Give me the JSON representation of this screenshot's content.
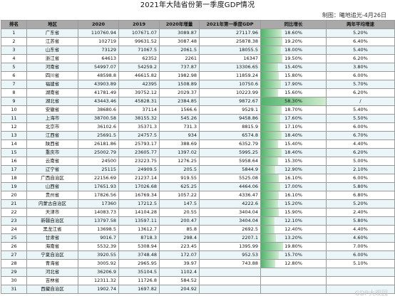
{
  "title": "2021年大陆省份第一季度GDP情况",
  "subtitle": "制图：曦地追光-4月26日",
  "watermark": "GDP大观园",
  "headers": [
    "排名",
    "地区",
    "2020",
    "2019",
    "2020年增量",
    "2021年第一季度GDP",
    "同比增长",
    "两年平均增速"
  ],
  "rows": [
    {
      "rank": "1",
      "region": "广东省",
      "y2020": "110760.94",
      "y2019": "107671.07",
      "inc": "3089.87",
      "q1": "27117.96",
      "growth": "18.60%",
      "g": 18.6,
      "avg": "5.20%"
    },
    {
      "rank": "2",
      "region": "江苏省",
      "y2020": "102719",
      "y2019": "99631.52",
      "inc": "3087.48",
      "q1": "25878.38",
      "growth": "19.20%",
      "g": 19.2,
      "avg": "6.40%"
    },
    {
      "rank": "3",
      "region": "山东省",
      "y2020": "73129",
      "y2019": "71067.5",
      "inc": "2061.5",
      "q1": "18055.5",
      "growth": "18.00%",
      "g": 18.0,
      "avg": "5.40%"
    },
    {
      "rank": "4",
      "region": "浙江省",
      "y2020": "64613",
      "y2019": "62352",
      "inc": "2261",
      "q1": "16347",
      "growth": "19.50%",
      "g": 19.5,
      "avg": "6.20%"
    },
    {
      "rank": "5",
      "region": "河南省",
      "y2020": "54997.07",
      "y2019": "54259.2",
      "inc": "737.87",
      "q1": "13306.65",
      "growth": "15.40%",
      "g": 15.4,
      "avg": "3.80%"
    },
    {
      "rank": "6",
      "region": "四川省",
      "y2020": "48598.8",
      "y2019": "46615.82",
      "inc": "1982.98",
      "q1": "11859.24",
      "growth": "15.80%",
      "g": 15.8,
      "avg": "6.00%"
    },
    {
      "rank": "7",
      "region": "福建省",
      "y2020": "43903.89",
      "y2019": "42395",
      "inc": "1508.89",
      "q1": "10750.6",
      "growth": "17.90%",
      "g": 17.9,
      "avg": "5.70%"
    },
    {
      "rank": "8",
      "region": "湖南省",
      "y2020": "41781.49",
      "y2019": "39752.12",
      "inc": "2029.37",
      "q1": "10223.99",
      "growth": "15.60%",
      "g": 15.6,
      "avg": "6.20%"
    },
    {
      "rank": "9",
      "region": "湖北省",
      "y2020": "43443.46",
      "y2019": "45828.31",
      "inc": "2384.85",
      "q1": "9872.67",
      "growth": "58.30%",
      "g": 58.3,
      "avg": "/"
    },
    {
      "rank": "10",
      "region": "安徽省",
      "y2020": "38680.6",
      "y2019": "37114",
      "inc": "1566.6",
      "q1": "9529.1",
      "growth": "18.70%",
      "g": 18.7,
      "avg": "5.40%"
    },
    {
      "rank": "11",
      "region": "上海市",
      "y2020": "38700.58",
      "y2019": "38155.32",
      "inc": "545.26",
      "q1": "9458.86",
      "growth": "17.60%",
      "g": 17.6,
      "avg": "5.50%"
    },
    {
      "rank": "12",
      "region": "北京市",
      "y2020": "36102.6",
      "y2019": "35371.3",
      "inc": "731.3",
      "q1": "8815.9",
      "growth": "17.10%",
      "g": 17.1,
      "avg": "6.00%"
    },
    {
      "rank": "13",
      "region": "江西省",
      "y2020": "25691.5",
      "y2019": "24757.5",
      "inc": "934",
      "q1": "6574.8",
      "growth": "18.40%",
      "g": 18.4,
      "avg": "6.70%"
    },
    {
      "rank": "14",
      "region": "陕西省",
      "y2020": "26181.86",
      "y2019": "25793.17",
      "inc": "388.69",
      "q1": "6352.79",
      "growth": "15.40%",
      "g": 15.4,
      "avg": "4.40%"
    },
    {
      "rank": "15",
      "region": "重庆市",
      "y2020": "25002.79",
      "y2019": "23605.77",
      "inc": "1397.02",
      "q1": "5995.25",
      "growth": "18.40%",
      "g": 18.4,
      "avg": "6.20%"
    },
    {
      "rank": "16",
      "region": "云南省",
      "y2020": "24500",
      "y2019": "23223.75",
      "inc": "1276.25",
      "q1": "5958.64",
      "growth": "15.30%",
      "g": 15.3,
      "avg": "5.00%"
    },
    {
      "rank": "17",
      "region": "辽宁省",
      "y2020": "25115",
      "y2019": "24909.5",
      "inc": "205.5",
      "q1": "5844.9",
      "growth": "12.90%",
      "g": 12.9,
      "avg": "2.10%"
    },
    {
      "rank": "18",
      "region": "广西自治区",
      "y2020": "22156.69",
      "y2019": "21237.14",
      "inc": "919.55",
      "q1": "5525.08",
      "growth": "16.10%",
      "g": 16.1,
      "avg": "6.00%"
    },
    {
      "rank": "19",
      "region": "山西省",
      "y2020": "17651.93",
      "y2019": "17026.68",
      "inc": "625.25",
      "q1": "4464.06",
      "growth": "17.00%",
      "g": 17.0,
      "avg": "5.80%"
    },
    {
      "rank": "20",
      "region": "贵州省",
      "y2020": "17826.56",
      "y2019": "16769.34",
      "inc": "1057.22",
      "q1": "4336.47",
      "growth": "16.10%",
      "g": 16.1,
      "avg": "6.80%"
    },
    {
      "rank": "21",
      "region": "内蒙古自治区",
      "y2020": "17360",
      "y2019": "17212.5",
      "inc": "147.5",
      "q1": "4222.6",
      "growth": "15.20%",
      "g": 15.2,
      "avg": "5.20%"
    },
    {
      "rank": "22",
      "region": "天津市",
      "y2020": "14083.73",
      "y2019": "14104.28",
      "inc": "20.55",
      "q1": "3404.04",
      "growth": "15.90%",
      "g": 15.9,
      "avg": "2.40%"
    },
    {
      "rank": "23",
      "region": "新疆自治区",
      "y2020": "13797.58",
      "y2019": "13597.11",
      "inc": "200.47",
      "q1": "3404.04",
      "growth": "12.10%",
      "g": 12.1,
      "avg": "5.80%"
    },
    {
      "rank": "24",
      "region": "黑龙江省",
      "y2020": "13698.5",
      "y2019": "13612.7",
      "inc": "85.8",
      "q1": "2692.5",
      "growth": "12.40%",
      "g": 12.4,
      "avg": "4.40%"
    },
    {
      "rank": "25",
      "region": "甘肃省",
      "y2020": "9016.7",
      "y2019": "8718.3",
      "inc": "298.4",
      "q1": "2207.1",
      "growth": "13.20%",
      "g": 13.2,
      "avg": "4.60%"
    },
    {
      "rank": "26",
      "region": "海南省",
      "y2020": "5532.39",
      "y2019": "5308.94",
      "inc": "223.45",
      "q1": "1395.99",
      "growth": "19.80%",
      "g": 19.8,
      "avg": "7.00%"
    },
    {
      "rank": "27",
      "region": "宁夏自治区",
      "y2020": "3920.55",
      "y2019": "3748.48",
      "inc": "172.07",
      "q1": "952.53",
      "growth": "15.70%",
      "g": 15.7,
      "avg": "6.00%"
    },
    {
      "rank": "28",
      "region": "青海省",
      "y2020": "3005.92",
      "y2019": "2965.95",
      "inc": "39.97",
      "q1": "743.88",
      "growth": "12.80%",
      "g": 12.8,
      "avg": "5.10%"
    },
    {
      "rank": "29",
      "region": "河北省",
      "y2020": "36206.9",
      "y2019": "35104.5",
      "inc": "1102.4",
      "q1": "",
      "growth": "",
      "g": 0,
      "avg": ""
    },
    {
      "rank": "30",
      "region": "吉林省",
      "y2020": "12311.32",
      "y2019": "11726.8",
      "inc": "584.52",
      "q1": "",
      "growth": "",
      "g": 0,
      "avg": ""
    },
    {
      "rank": "31",
      "region": "西藏自治区",
      "y2020": "1902.74",
      "y2019": "1697.82",
      "inc": "204.92",
      "q1": "",
      "growth": "",
      "g": 0,
      "avg": ""
    }
  ],
  "growth_max": 58.3
}
